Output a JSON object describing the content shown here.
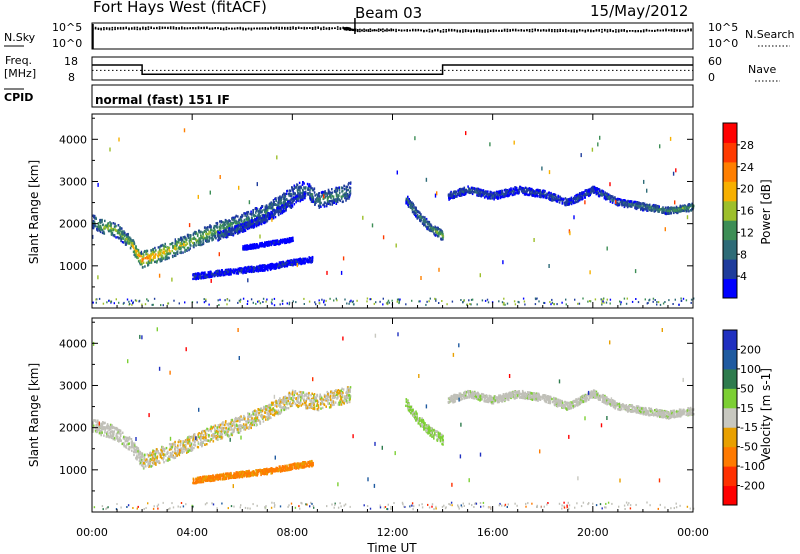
{
  "header": {
    "station": "Fort Hays West (fitACF)",
    "beam": "Beam 03",
    "date": "15/May/2012"
  },
  "status_panels": {
    "nsky_label": "N.Sky",
    "nsearch_label": "N.Search",
    "noise_ticks": [
      "10^5",
      "10^0"
    ],
    "freq_label_1": "Freq.",
    "freq_label_2": "[MHz]",
    "freq_ticks": [
      "18",
      "8"
    ],
    "nave_label": "Nave",
    "nave_ticks": [
      "60",
      "0"
    ],
    "cpid_label": "CPID",
    "cpid_text": "normal (fast) 151 IF"
  },
  "colors": {
    "power": [
      "#0000ff",
      "#1f3c9c",
      "#2e6b77",
      "#3d8e56",
      "#9dbf2b",
      "#f7b000",
      "#ff7f00",
      "#ff3a00",
      "#ff0000"
    ],
    "velocity": [
      "#2030c0",
      "#1f5aa0",
      "#2e7b4d",
      "#7ccf33",
      "#c8c8c0",
      "#e8a000",
      "#ff7a00",
      "#ff3000",
      "#ff0000"
    ],
    "ground_scatter": "#c0c0b8"
  },
  "chart_data": [
    {
      "type": "line",
      "panel": "noise",
      "x": [
        "00:00",
        "02:00",
        "04:00",
        "06:00",
        "08:00",
        "10:00",
        "10:30",
        "12:00",
        "14:00",
        "16:00",
        "18:00",
        "20:00",
        "22:00",
        "24:00"
      ],
      "series": [
        {
          "name": "N.Sky",
          "values": [
            4.0,
            4.1,
            4.1,
            4.0,
            4.1,
            4.1,
            3.7,
            3.7,
            3.6,
            3.6,
            3.7,
            3.6,
            3.6,
            3.7
          ]
        },
        {
          "name": "N.Search",
          "values": [
            3.8,
            3.9,
            3.9,
            3.8,
            3.9,
            3.9,
            3.5,
            3.5,
            3.4,
            3.4,
            3.5,
            3.4,
            3.4,
            3.5
          ]
        }
      ],
      "ylim": [
        0,
        5
      ]
    },
    {
      "type": "line",
      "panel": "frequency",
      "x": [
        "00:00",
        "02:00",
        "02:00",
        "14:00",
        "14:00",
        "24:00"
      ],
      "series": [
        {
          "name": "Freq.",
          "values": [
            14.5,
            14.5,
            10.5,
            10.5,
            14.5,
            14.5
          ]
        },
        {
          "name": "Nave",
          "values": [
            25,
            25,
            25,
            25,
            25,
            25
          ]
        }
      ],
      "ylim_left": [
        8,
        18
      ],
      "ylim_right": [
        0,
        60
      ]
    },
    {
      "type": "heatmap",
      "panel": "power",
      "ylabel": "Slant Range [km]",
      "yticks": [
        1000,
        2000,
        3000,
        4000
      ],
      "ylim": [
        0,
        4600
      ],
      "colorbar_label": "Power [dB]",
      "colorbar_ticks": [
        4,
        8,
        12,
        16,
        20,
        24,
        28
      ],
      "colorbar_range": [
        0,
        32
      ],
      "scatter_bands": [
        {
          "t": [
            0,
            0.3,
            0.7,
            1.0,
            1.5,
            2.0
          ],
          "r": [
            2050,
            1950,
            1880,
            1820,
            1550,
            1100
          ],
          "w": 320,
          "level": [
            10,
            14,
            18,
            14,
            16,
            26
          ]
        },
        {
          "t": [
            2.0,
            3.0,
            4.0,
            5.0,
            6.0,
            7.0,
            8.0,
            8.5,
            9.0,
            10.0,
            10.3
          ],
          "r": [
            1150,
            1350,
            1600,
            1850,
            2050,
            2300,
            2700,
            2850,
            2550,
            2700,
            2800
          ],
          "w": 380,
          "level": [
            24,
            18,
            16,
            14,
            12,
            10,
            8,
            8,
            10,
            12,
            8
          ]
        },
        {
          "t": [
            5.0,
            6.0,
            7.0,
            8.0,
            8.5
          ],
          "r": [
            1700,
            1900,
            2150,
            2500,
            2700
          ],
          "w": 200,
          "level": [
            8,
            6,
            6,
            6,
            6
          ]
        },
        {
          "t": [
            4.0,
            5.5,
            7.0,
            8.0,
            8.8
          ],
          "r": [
            740,
            860,
            960,
            1080,
            1150
          ],
          "w": 130,
          "level": [
            4,
            4,
            3,
            4,
            3
          ]
        },
        {
          "t": [
            6.0,
            7.0,
            8.0
          ],
          "r": [
            1420,
            1520,
            1620
          ],
          "w": 100,
          "level": [
            2,
            2,
            2
          ]
        },
        {
          "t": [
            12.5,
            13.0,
            13.5,
            14.0
          ],
          "r": [
            2600,
            2200,
            1900,
            1700
          ],
          "w": 220,
          "level": [
            8,
            10,
            12,
            16
          ]
        },
        {
          "t": [
            14.2,
            15.0,
            16.0,
            17.0,
            18.0,
            19.0,
            20.0,
            21.0,
            22.0,
            23.0,
            24.0
          ],
          "r": [
            2650,
            2800,
            2650,
            2800,
            2700,
            2500,
            2800,
            2500,
            2400,
            2300,
            2400
          ],
          "w": 170,
          "level": [
            6,
            8,
            6,
            6,
            6,
            6,
            6,
            8,
            10,
            12,
            14
          ]
        }
      ]
    },
    {
      "type": "heatmap",
      "panel": "velocity",
      "xlabel": "Time UT",
      "xticks": [
        "00:00",
        "04:00",
        "08:00",
        "12:00",
        "16:00",
        "20:00",
        "00:00"
      ],
      "ylabel": "Slant Range [km]",
      "yticks": [
        1000,
        2000,
        3000,
        4000
      ],
      "ylim": [
        0,
        4600
      ],
      "colorbar_label": "Velocity [m s-1]",
      "colorbar_ticks": [
        200,
        100,
        50,
        15,
        -15,
        -50,
        -100,
        -200
      ],
      "velocity_bands": [
        {
          "t": [
            0,
            0.5,
            1.0,
            1.5,
            2.0
          ],
          "r": [
            2050,
            1950,
            1850,
            1600,
            1200
          ],
          "w": 320,
          "class": "ground"
        },
        {
          "t": [
            2.0,
            3.0,
            4.0,
            5.0,
            6.0,
            7.0,
            8.0,
            9.0,
            10.0,
            10.3
          ],
          "r": [
            1200,
            1400,
            1650,
            1900,
            2100,
            2350,
            2700,
            2600,
            2750,
            2800
          ],
          "w": 380,
          "class": "mixed-orange"
        },
        {
          "t": [
            4.0,
            5.5,
            7.0,
            8.0,
            8.8
          ],
          "r": [
            740,
            860,
            960,
            1080,
            1150
          ],
          "w": 130,
          "class": "orange"
        },
        {
          "t": [
            12.5,
            13.0,
            13.5,
            14.0
          ],
          "r": [
            2600,
            2200,
            1900,
            1700
          ],
          "w": 220,
          "class": "green"
        },
        {
          "t": [
            14.2,
            15.0,
            16.0,
            17.0,
            18.0,
            19.0,
            20.0,
            21.0,
            22.0,
            23.0,
            24.0
          ],
          "r": [
            2650,
            2800,
            2650,
            2800,
            2700,
            2500,
            2800,
            2500,
            2400,
            2300,
            2400
          ],
          "w": 170,
          "class": "ground"
        }
      ]
    }
  ]
}
